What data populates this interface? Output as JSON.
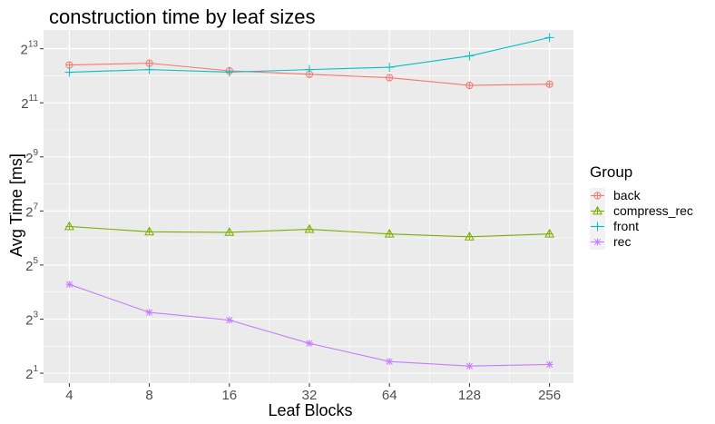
{
  "chart_data": {
    "type": "line",
    "title": "construction time by leaf sizes",
    "xlabel": "Leaf Blocks",
    "ylabel": "Avg Time [ms]",
    "x_scale": "log2",
    "y_scale": "log2",
    "categories": [
      "4",
      "8",
      "16",
      "32",
      "64",
      "128",
      "256"
    ],
    "x": [
      4,
      8,
      16,
      32,
      64,
      128,
      256
    ],
    "y_ticks": [
      {
        "base": "2",
        "exp": "1",
        "value": 2
      },
      {
        "base": "2",
        "exp": "3",
        "value": 8
      },
      {
        "base": "2",
        "exp": "5",
        "value": 32
      },
      {
        "base": "2",
        "exp": "7",
        "value": 128
      },
      {
        "base": "2",
        "exp": "9",
        "value": 512
      },
      {
        "base": "2",
        "exp": "11",
        "value": 2048
      },
      {
        "base": "2",
        "exp": "13",
        "value": 8192
      }
    ],
    "ylim": [
      1.55,
      13250
    ],
    "xlim": [
      3.2,
      315
    ],
    "grid": true,
    "legend_title": "Group",
    "legend_position": "right",
    "series": [
      {
        "name": "back",
        "color": "#F8766D",
        "marker": "circle-plus",
        "values": [
          5400,
          5650,
          4650,
          4250,
          3900,
          3200,
          3300
        ]
      },
      {
        "name": "compress_rec",
        "color": "#7CAE00",
        "marker": "triangle",
        "values": [
          86,
          75,
          74,
          80,
          71,
          66,
          71
        ]
      },
      {
        "name": "front",
        "color": "#00BFC4",
        "marker": "plus",
        "values": [
          4480,
          4800,
          4500,
          4800,
          5100,
          6800,
          10900
        ]
      },
      {
        "name": "rec",
        "color": "#C77CFF",
        "marker": "asterisk",
        "values": [
          19.5,
          9.5,
          7.8,
          4.3,
          2.7,
          2.4,
          2.5
        ]
      }
    ]
  }
}
